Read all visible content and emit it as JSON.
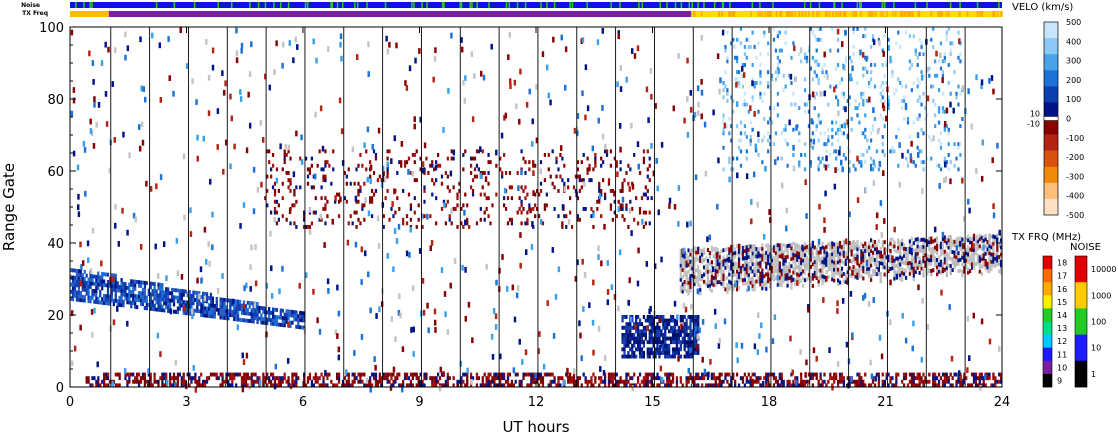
{
  "chart_data": {
    "type": "heatmap",
    "xlabel": "UT hours",
    "ylabel": "Range Gate",
    "xlim": [
      0,
      24
    ],
    "ylim": [
      0,
      100
    ],
    "x_ticks": [
      "0",
      "3",
      "6",
      "9",
      "12",
      "15",
      "18",
      "21",
      "24"
    ],
    "y_ticks": [
      "0",
      "20",
      "40",
      "60",
      "80",
      "100"
    ],
    "top_strips": [
      {
        "label": "Noise",
        "base_color": "#1010e0",
        "speckle_color": "#22cc22"
      },
      {
        "label": "TX Freq",
        "segments": [
          {
            "from": 0,
            "to": 1,
            "color": "#ffbb00"
          },
          {
            "from": 1,
            "to": 16,
            "color": "#7a1fa0"
          },
          {
            "from": 16,
            "to": 24,
            "color": "#ffdd00"
          }
        ]
      }
    ],
    "velocity_colorbar": {
      "title": "VELO (km/s)",
      "ticks": [
        "500",
        "400",
        "300",
        "200",
        "100",
        "0",
        "-100",
        "-200",
        "-300",
        "-400",
        "-500"
      ],
      "extra_ticks": [
        "10",
        "-10"
      ],
      "colors": [
        "#c8e6fb",
        "#8cc8f5",
        "#4aa3ea",
        "#1c72d6",
        "#0b3fb0",
        "#001488",
        "#880000",
        "#b52412",
        "#d8520e",
        "#f0880a",
        "#fcc07a",
        "#fde1c2"
      ]
    },
    "txfreq_colorbar": {
      "title": "TX FRQ (MHz)",
      "ticks": [
        "18",
        "17",
        "16",
        "15",
        "14",
        "13",
        "12",
        "11",
        "10",
        "9"
      ],
      "colors": [
        "#e00000",
        "#ff6a00",
        "#ffaa00",
        "#ffee00",
        "#22cc22",
        "#00dd88",
        "#00c8ff",
        "#1c1cff",
        "#7a1fa0",
        "#000000"
      ]
    },
    "noise_colorbar": {
      "title": "NOISE",
      "ticks": [
        "10000",
        "1000",
        "100",
        "10",
        "1"
      ],
      "colors": [
        "#e00000",
        "#ffcc00",
        "#22cc22",
        "#1c1cff",
        "#000000"
      ]
    },
    "scatter_regions": [
      {
        "name": "near-range ground scatter",
        "t0": 0.4,
        "t1": 24,
        "g0": 0,
        "g1": 4,
        "color": "#8b0000",
        "note": "negative velocity / near range"
      },
      {
        "name": "e-region band 0-6 UT",
        "t0": 0,
        "t1": 6,
        "g0": 16,
        "g1": 33,
        "color": "#1a3fb0",
        "note": "velocity 100-300 km/s"
      },
      {
        "name": "band 14-16 UT",
        "t0": 14.2,
        "t1": 16.2,
        "g0": 8,
        "g1": 20,
        "color": "#00148a"
      },
      {
        "name": "ground scatter 16-24 UT",
        "t0": 15.7,
        "t1": 24,
        "g0": 25,
        "g1": 44,
        "color": "#c4c4c4"
      },
      {
        "name": "patchy F-region 5-15 UT",
        "t0": 5,
        "t1": 15,
        "g0": 44,
        "g1": 66,
        "color": "#8b0000"
      },
      {
        "name": "high velocity 16-23 UT",
        "t0": 16.8,
        "t1": 23,
        "g0": 60,
        "g1": 100,
        "color": "#3aa0ea"
      }
    ],
    "beam_sweep_lines": "one vertical line per scan approx every 1 UT hour"
  }
}
